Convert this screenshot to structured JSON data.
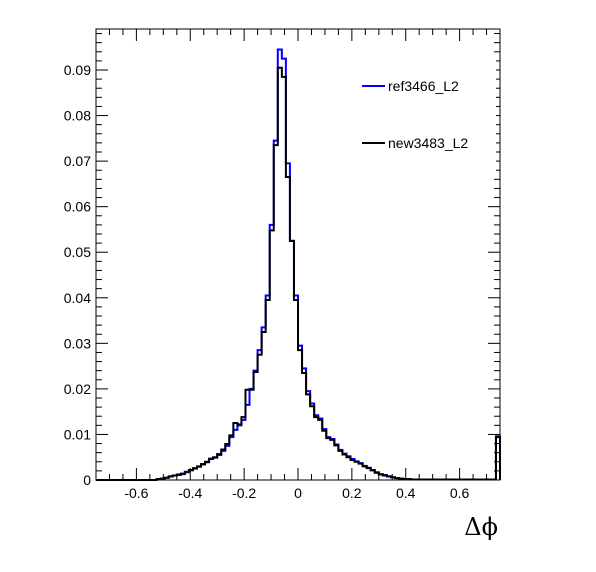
{
  "chart_data": {
    "type": "line",
    "subtype": "step-histogram",
    "xlabel": "Δϕ",
    "ylabel": "",
    "xlim": [
      -0.75,
      0.75
    ],
    "ylim": [
      0,
      0.099
    ],
    "x_ticks": [
      "-0.6",
      "-0.4",
      "-0.2",
      "0",
      "0.2",
      "0.4",
      "0.6"
    ],
    "y_ticks": [
      "0",
      "0.01",
      "0.02",
      "0.03",
      "0.04",
      "0.05",
      "0.06",
      "0.07",
      "0.08",
      "0.09"
    ],
    "grid": false,
    "legend_position": "top-right",
    "bin_edges_start": -0.75,
    "bin_width": 0.015,
    "series": [
      {
        "name": "ref3466_L2",
        "color": "#0000ff",
        "values": [
          0,
          0,
          0,
          0,
          0,
          0,
          0,
          0,
          0,
          0,
          0,
          0,
          0,
          0,
          0,
          0.0002,
          0.0003,
          0.0005,
          0.0008,
          0.001,
          0.0011,
          0.0013,
          0.0017,
          0.0021,
          0.0025,
          0.0029,
          0.0034,
          0.0039,
          0.0046,
          0.0049,
          0.0055,
          0.0064,
          0.0075,
          0.0094,
          0.011,
          0.012,
          0.0132,
          0.0165,
          0.02,
          0.024,
          0.0285,
          0.0335,
          0.0405,
          0.056,
          0.0745,
          0.0945,
          0.0925,
          0.0695,
          0.0525,
          0.0405,
          0.0295,
          0.0245,
          0.0195,
          0.0168,
          0.0142,
          0.0135,
          0.0112,
          0.0094,
          0.009,
          0.0078,
          0.0066,
          0.0058,
          0.0052,
          0.0046,
          0.0041,
          0.0037,
          0.0031,
          0.0027,
          0.0022,
          0.0017,
          0.0013,
          0.0011,
          0.0008,
          0.0006,
          0.0004,
          0.0003,
          0.0002,
          0.0002,
          0.0001,
          0.0001,
          0.0001,
          0.0001,
          0.0001,
          0.0001,
          0.0001,
          0.0001,
          0.0001,
          0.0001,
          0.0001,
          0.0001,
          0.0001,
          0.0001,
          0.0001,
          0.0001,
          0.0001,
          0.0001,
          0.0001,
          0.0001,
          0.0001,
          0.0096
        ]
      },
      {
        "name": "new3483_L2",
        "color": "#000000",
        "values": [
          0,
          0,
          0,
          0,
          0,
          0,
          0,
          0,
          0,
          0,
          0,
          0,
          0,
          0,
          0,
          0.0002,
          0.0003,
          0.0005,
          0.0008,
          0.001,
          0.0012,
          0.0014,
          0.0018,
          0.0022,
          0.0026,
          0.003,
          0.0035,
          0.004,
          0.0047,
          0.005,
          0.0057,
          0.0067,
          0.0079,
          0.0098,
          0.0125,
          0.0122,
          0.0138,
          0.0198,
          0.0198,
          0.0237,
          0.0275,
          0.0325,
          0.0395,
          0.0548,
          0.0735,
          0.0905,
          0.0885,
          0.0665,
          0.0525,
          0.0395,
          0.0285,
          0.0235,
          0.0188,
          0.0162,
          0.0138,
          0.0132,
          0.0108,
          0.0092,
          0.0088,
          0.0076,
          0.0064,
          0.0056,
          0.005,
          0.0044,
          0.004,
          0.0036,
          0.003,
          0.0026,
          0.0021,
          0.0016,
          0.0012,
          0.001,
          0.0008,
          0.0006,
          0.0004,
          0.0003,
          0.0002,
          0.0002,
          0.0001,
          0.0001,
          0.0001,
          0.0001,
          0.0001,
          0.0001,
          0.0001,
          0.0001,
          0.0001,
          0.0001,
          0.0001,
          0.0001,
          0.0001,
          0.0001,
          0.0001,
          0.0001,
          0.0001,
          0.0001,
          0.0001,
          0.0001,
          0.0001,
          0.0094
        ]
      }
    ]
  }
}
